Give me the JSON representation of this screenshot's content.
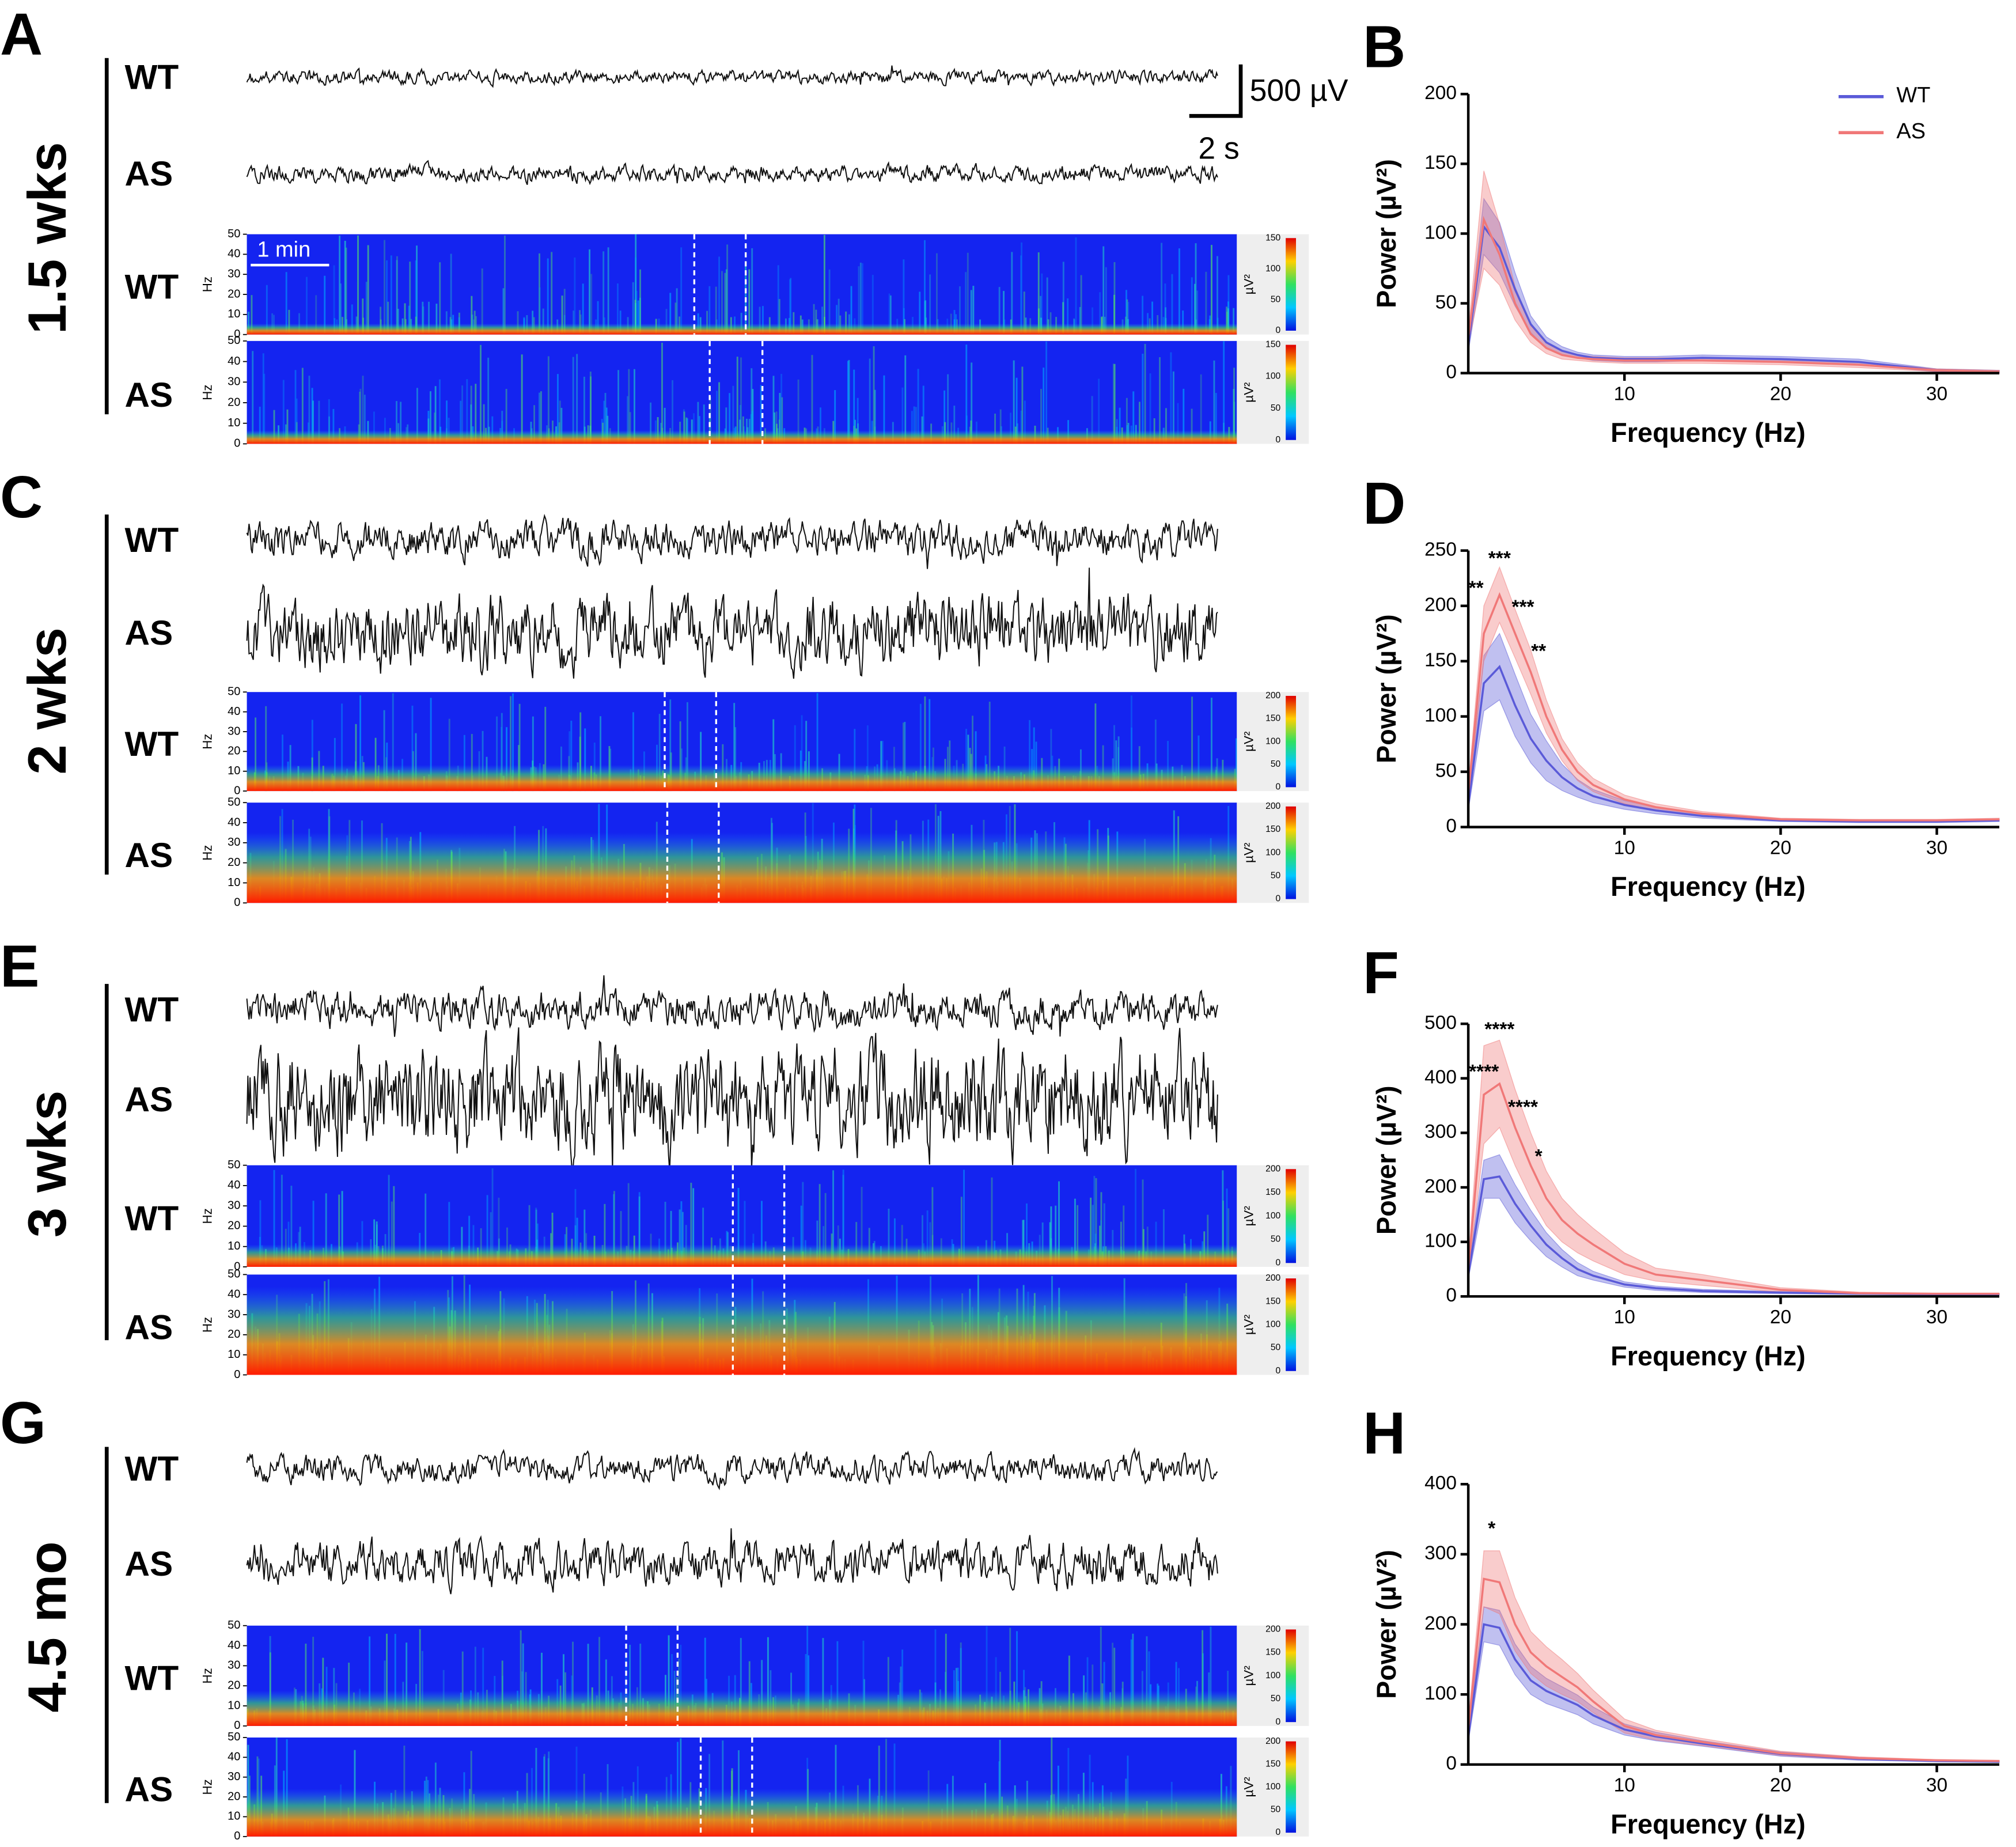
{
  "panels": [
    {
      "label": "A",
      "age": "1.5 wks",
      "trace_labels": [
        "WT",
        "AS"
      ],
      "spectrogram_labels": [
        "WT",
        "AS"
      ],
      "colorbar_ticks": [
        0,
        50,
        100,
        150
      ]
    },
    {
      "label": "C",
      "age": "2 wks",
      "trace_labels": [
        "WT",
        "AS"
      ],
      "spectrogram_labels": [
        "WT",
        "AS"
      ],
      "colorbar_ticks": [
        0,
        50,
        100,
        150,
        200
      ]
    },
    {
      "label": "E",
      "age": "3 wks",
      "trace_labels": [
        "WT",
        "AS"
      ],
      "spectrogram_labels": [
        "WT",
        "AS"
      ],
      "colorbar_ticks": [
        0,
        50,
        100,
        150,
        200
      ]
    },
    {
      "label": "G",
      "age": "4.5 mo",
      "trace_labels": [
        "WT",
        "AS"
      ],
      "spectrogram_labels": [
        "WT",
        "AS"
      ],
      "colorbar_ticks": [
        0,
        50,
        100,
        150,
        200
      ]
    }
  ],
  "scale_bar": {
    "amplitude": "500 µV",
    "time": "2 s",
    "spectrogram_time": "1 min"
  },
  "spectrogram_axis": {
    "label": "Hz",
    "ticks": [
      0,
      10,
      20,
      30,
      40,
      50
    ],
    "colorbar_label": "µV²"
  },
  "chart_data": [
    {
      "type": "line",
      "panel_label": "B",
      "x_label": "Frequency (Hz)",
      "y_label": "Power (µV²)",
      "x": [
        0,
        1,
        2,
        3,
        4,
        5,
        6,
        7,
        8,
        10,
        12,
        15,
        20,
        25,
        30,
        34
      ],
      "xlim": [
        0,
        34
      ],
      "xticks": [
        10,
        20,
        30
      ],
      "ylim": [
        0,
        200
      ],
      "yticks": [
        0,
        50,
        100,
        150,
        200
      ],
      "legend": "upper right",
      "series": [
        {
          "name": "WT",
          "color": "#5a5ad8",
          "values": [
            20,
            105,
            90,
            60,
            35,
            22,
            16,
            13,
            11,
            10,
            10,
            11,
            10,
            8,
            2,
            1
          ],
          "errors": [
            5,
            20,
            18,
            12,
            6,
            4,
            3,
            2,
            2,
            2,
            2,
            2,
            2,
            2,
            1,
            1
          ]
        },
        {
          "name": "AS",
          "color": "#f07878",
          "values": [
            25,
            110,
            85,
            50,
            28,
            18,
            13,
            11,
            10,
            9,
            9,
            9,
            8,
            6,
            2,
            1
          ],
          "errors": [
            5,
            35,
            22,
            12,
            6,
            4,
            3,
            2,
            2,
            2,
            2,
            2,
            2,
            2,
            1,
            1
          ]
        }
      ],
      "annotations": []
    },
    {
      "type": "line",
      "panel_label": "D",
      "x_label": "Frequency (Hz)",
      "y_label": "Power (µV²)",
      "x": [
        0,
        1,
        2,
        3,
        4,
        5,
        6,
        7,
        8,
        10,
        12,
        15,
        20,
        25,
        30,
        34
      ],
      "xlim": [
        0,
        34
      ],
      "xticks": [
        10,
        20,
        30
      ],
      "ylim": [
        0,
        250
      ],
      "yticks": [
        0,
        50,
        100,
        150,
        200,
        250
      ],
      "series": [
        {
          "name": "WT",
          "color": "#5a5ad8",
          "values": [
            20,
            130,
            145,
            110,
            80,
            60,
            45,
            35,
            28,
            20,
            15,
            10,
            6,
            5,
            5,
            6
          ],
          "errors": [
            5,
            25,
            30,
            28,
            22,
            18,
            12,
            8,
            6,
            4,
            3,
            2,
            1,
            1,
            1,
            1
          ]
        },
        {
          "name": "AS",
          "color": "#f07878",
          "values": [
            30,
            175,
            210,
            175,
            140,
            100,
            70,
            50,
            38,
            25,
            18,
            12,
            7,
            6,
            6,
            7
          ],
          "errors": [
            6,
            25,
            25,
            22,
            20,
            15,
            10,
            8,
            6,
            4,
            3,
            2,
            1,
            1,
            1,
            1
          ]
        }
      ],
      "annotations": [
        {
          "text": "**",
          "x": 0.5,
          "y": 215
        },
        {
          "text": "***",
          "x": 2,
          "y": 242
        },
        {
          "text": "***",
          "x": 3.5,
          "y": 198
        },
        {
          "text": "**",
          "x": 4.5,
          "y": 158
        }
      ]
    },
    {
      "type": "line",
      "panel_label": "F",
      "x_label": "Frequency (Hz)",
      "y_label": "Power (µV²)",
      "x": [
        0,
        1,
        2,
        3,
        4,
        5,
        6,
        7,
        8,
        10,
        12,
        15,
        20,
        25,
        30,
        34
      ],
      "xlim": [
        0,
        34
      ],
      "xticks": [
        10,
        20,
        30
      ],
      "ylim": [
        0,
        500
      ],
      "yticks": [
        0,
        100,
        200,
        300,
        400,
        500
      ],
      "series": [
        {
          "name": "WT",
          "color": "#5a5ad8",
          "values": [
            40,
            215,
            220,
            170,
            130,
            95,
            70,
            50,
            38,
            22,
            15,
            10,
            7,
            5,
            4,
            4
          ],
          "errors": [
            8,
            35,
            40,
            35,
            28,
            22,
            16,
            12,
            8,
            5,
            4,
            3,
            2,
            1,
            1,
            1
          ]
        },
        {
          "name": "AS",
          "color": "#f07878",
          "values": [
            50,
            370,
            390,
            310,
            240,
            180,
            140,
            115,
            95,
            60,
            40,
            30,
            12,
            6,
            5,
            5
          ],
          "errors": [
            10,
            90,
            80,
            70,
            60,
            50,
            40,
            35,
            30,
            20,
            12,
            10,
            4,
            2,
            1,
            1
          ]
        }
      ],
      "annotations": [
        {
          "text": "****",
          "x": 2,
          "y": 488
        },
        {
          "text": "****",
          "x": 1,
          "y": 410
        },
        {
          "text": "****",
          "x": 3.5,
          "y": 345
        },
        {
          "text": "*",
          "x": 4.5,
          "y": 255
        }
      ]
    },
    {
      "type": "line",
      "panel_label": "H",
      "x_label": "Frequency (Hz)",
      "y_label": "Power (µV²)",
      "x": [
        0,
        1,
        2,
        3,
        4,
        5,
        6,
        7,
        8,
        10,
        12,
        15,
        20,
        25,
        30,
        34
      ],
      "xlim": [
        0,
        34
      ],
      "xticks": [
        10,
        20,
        30
      ],
      "ylim": [
        0,
        400
      ],
      "yticks": [
        0,
        100,
        200,
        300,
        400
      ],
      "series": [
        {
          "name": "WT",
          "color": "#5a5ad8",
          "values": [
            40,
            200,
            195,
            150,
            120,
            105,
            95,
            85,
            70,
            50,
            40,
            30,
            15,
            8,
            5,
            4
          ],
          "errors": [
            8,
            25,
            25,
            22,
            20,
            18,
            16,
            14,
            12,
            8,
            6,
            4,
            3,
            2,
            1,
            1
          ]
        },
        {
          "name": "AS",
          "color": "#f07878",
          "values": [
            50,
            265,
            260,
            200,
            160,
            140,
            125,
            110,
            90,
            55,
            42,
            32,
            16,
            9,
            6,
            5
          ],
          "errors": [
            10,
            40,
            45,
            38,
            30,
            28,
            25,
            20,
            16,
            10,
            7,
            5,
            3,
            2,
            1,
            1
          ]
        }
      ],
      "annotations": [
        {
          "text": "*",
          "x": 1.5,
          "y": 335
        }
      ]
    }
  ]
}
